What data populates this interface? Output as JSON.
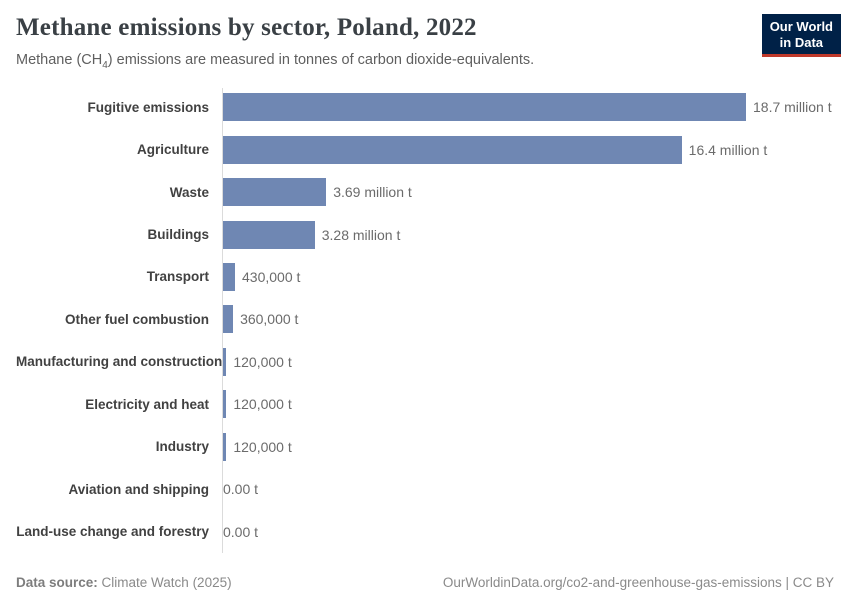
{
  "header": {
    "title": "Methane emissions by sector, Poland, 2022",
    "subtitle": {
      "pre": "Methane (CH",
      "sub": "4",
      "post": ") emissions are measured in tonnes of carbon dioxide-equivalents."
    },
    "logo": {
      "line1": "Our World",
      "line2": "in Data"
    }
  },
  "chart_data": {
    "type": "bar",
    "orientation": "horizontal",
    "title": "Methane emissions by sector, Poland, 2022",
    "categories": [
      "Fugitive emissions",
      "Agriculture",
      "Waste",
      "Buildings",
      "Transport",
      "Other fuel combustion",
      "Manufacturing and construction",
      "Electricity and heat",
      "Industry",
      "Aviation and shipping",
      "Land-use change and forestry"
    ],
    "values": [
      18700000,
      16400000,
      3690000,
      3280000,
      430000,
      360000,
      120000,
      120000,
      120000,
      0,
      0
    ],
    "value_labels": [
      "18.7 million t",
      "16.4 million t",
      "3.69 million t",
      "3.28 million t",
      "430,000 t",
      "360,000 t",
      "120,000 t",
      "120,000 t",
      "120,000 t",
      "0.00 t",
      "0.00 t"
    ],
    "xlim": [
      0,
      18700000
    ],
    "grid": false,
    "legend": "none",
    "bar_color": "#6f87b3"
  },
  "footer": {
    "source_label": "Data source:",
    "source_value": "Climate Watch (2025)",
    "credit": "OurWorldinData.org/co2-and-greenhouse-gas-emissions | CC BY"
  },
  "colors": {
    "bar": "#6f87b3",
    "logo_bg": "#002147",
    "logo_accent": "#c0392b",
    "axis": "#dbdbdb"
  }
}
